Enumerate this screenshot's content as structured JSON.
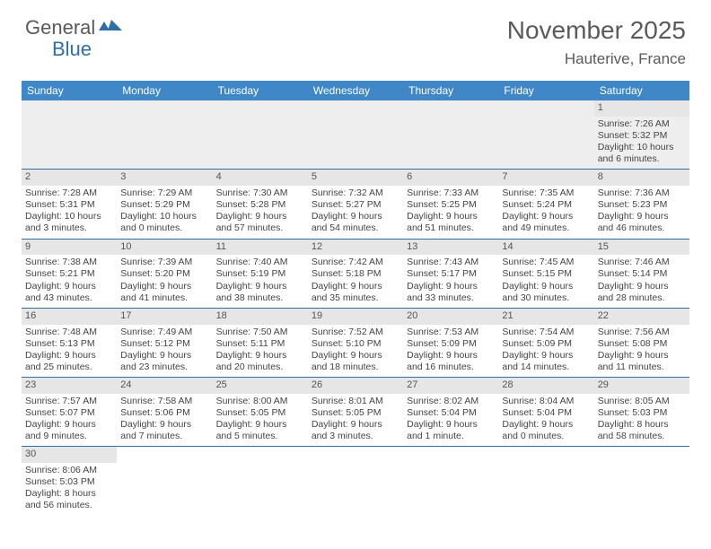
{
  "logo": {
    "text1": "General",
    "text2": "Blue",
    "color_gray": "#5a5a5a",
    "color_blue": "#2f6fa8"
  },
  "title": "November 2025",
  "location": "Hauterive, France",
  "colors": {
    "header_bg": "#3f87c6",
    "header_fg": "#ffffff",
    "cell_border": "#2f6fa8",
    "daynum_bg": "#e6e6e6",
    "empty_bg": "#eeeeee",
    "text": "#444444"
  },
  "days": [
    "Sunday",
    "Monday",
    "Tuesday",
    "Wednesday",
    "Thursday",
    "Friday",
    "Saturday"
  ],
  "weeks": [
    [
      null,
      null,
      null,
      null,
      null,
      null,
      {
        "n": "1",
        "sr": "Sunrise: 7:26 AM",
        "ss": "Sunset: 5:32 PM",
        "dl": "Daylight: 10 hours and 6 minutes."
      }
    ],
    [
      {
        "n": "2",
        "sr": "Sunrise: 7:28 AM",
        "ss": "Sunset: 5:31 PM",
        "dl": "Daylight: 10 hours and 3 minutes."
      },
      {
        "n": "3",
        "sr": "Sunrise: 7:29 AM",
        "ss": "Sunset: 5:29 PM",
        "dl": "Daylight: 10 hours and 0 minutes."
      },
      {
        "n": "4",
        "sr": "Sunrise: 7:30 AM",
        "ss": "Sunset: 5:28 PM",
        "dl": "Daylight: 9 hours and 57 minutes."
      },
      {
        "n": "5",
        "sr": "Sunrise: 7:32 AM",
        "ss": "Sunset: 5:27 PM",
        "dl": "Daylight: 9 hours and 54 minutes."
      },
      {
        "n": "6",
        "sr": "Sunrise: 7:33 AM",
        "ss": "Sunset: 5:25 PM",
        "dl": "Daylight: 9 hours and 51 minutes."
      },
      {
        "n": "7",
        "sr": "Sunrise: 7:35 AM",
        "ss": "Sunset: 5:24 PM",
        "dl": "Daylight: 9 hours and 49 minutes."
      },
      {
        "n": "8",
        "sr": "Sunrise: 7:36 AM",
        "ss": "Sunset: 5:23 PM",
        "dl": "Daylight: 9 hours and 46 minutes."
      }
    ],
    [
      {
        "n": "9",
        "sr": "Sunrise: 7:38 AM",
        "ss": "Sunset: 5:21 PM",
        "dl": "Daylight: 9 hours and 43 minutes."
      },
      {
        "n": "10",
        "sr": "Sunrise: 7:39 AM",
        "ss": "Sunset: 5:20 PM",
        "dl": "Daylight: 9 hours and 41 minutes."
      },
      {
        "n": "11",
        "sr": "Sunrise: 7:40 AM",
        "ss": "Sunset: 5:19 PM",
        "dl": "Daylight: 9 hours and 38 minutes."
      },
      {
        "n": "12",
        "sr": "Sunrise: 7:42 AM",
        "ss": "Sunset: 5:18 PM",
        "dl": "Daylight: 9 hours and 35 minutes."
      },
      {
        "n": "13",
        "sr": "Sunrise: 7:43 AM",
        "ss": "Sunset: 5:17 PM",
        "dl": "Daylight: 9 hours and 33 minutes."
      },
      {
        "n": "14",
        "sr": "Sunrise: 7:45 AM",
        "ss": "Sunset: 5:15 PM",
        "dl": "Daylight: 9 hours and 30 minutes."
      },
      {
        "n": "15",
        "sr": "Sunrise: 7:46 AM",
        "ss": "Sunset: 5:14 PM",
        "dl": "Daylight: 9 hours and 28 minutes."
      }
    ],
    [
      {
        "n": "16",
        "sr": "Sunrise: 7:48 AM",
        "ss": "Sunset: 5:13 PM",
        "dl": "Daylight: 9 hours and 25 minutes."
      },
      {
        "n": "17",
        "sr": "Sunrise: 7:49 AM",
        "ss": "Sunset: 5:12 PM",
        "dl": "Daylight: 9 hours and 23 minutes."
      },
      {
        "n": "18",
        "sr": "Sunrise: 7:50 AM",
        "ss": "Sunset: 5:11 PM",
        "dl": "Daylight: 9 hours and 20 minutes."
      },
      {
        "n": "19",
        "sr": "Sunrise: 7:52 AM",
        "ss": "Sunset: 5:10 PM",
        "dl": "Daylight: 9 hours and 18 minutes."
      },
      {
        "n": "20",
        "sr": "Sunrise: 7:53 AM",
        "ss": "Sunset: 5:09 PM",
        "dl": "Daylight: 9 hours and 16 minutes."
      },
      {
        "n": "21",
        "sr": "Sunrise: 7:54 AM",
        "ss": "Sunset: 5:09 PM",
        "dl": "Daylight: 9 hours and 14 minutes."
      },
      {
        "n": "22",
        "sr": "Sunrise: 7:56 AM",
        "ss": "Sunset: 5:08 PM",
        "dl": "Daylight: 9 hours and 11 minutes."
      }
    ],
    [
      {
        "n": "23",
        "sr": "Sunrise: 7:57 AM",
        "ss": "Sunset: 5:07 PM",
        "dl": "Daylight: 9 hours and 9 minutes."
      },
      {
        "n": "24",
        "sr": "Sunrise: 7:58 AM",
        "ss": "Sunset: 5:06 PM",
        "dl": "Daylight: 9 hours and 7 minutes."
      },
      {
        "n": "25",
        "sr": "Sunrise: 8:00 AM",
        "ss": "Sunset: 5:05 PM",
        "dl": "Daylight: 9 hours and 5 minutes."
      },
      {
        "n": "26",
        "sr": "Sunrise: 8:01 AM",
        "ss": "Sunset: 5:05 PM",
        "dl": "Daylight: 9 hours and 3 minutes."
      },
      {
        "n": "27",
        "sr": "Sunrise: 8:02 AM",
        "ss": "Sunset: 5:04 PM",
        "dl": "Daylight: 9 hours and 1 minute."
      },
      {
        "n": "28",
        "sr": "Sunrise: 8:04 AM",
        "ss": "Sunset: 5:04 PM",
        "dl": "Daylight: 9 hours and 0 minutes."
      },
      {
        "n": "29",
        "sr": "Sunrise: 8:05 AM",
        "ss": "Sunset: 5:03 PM",
        "dl": "Daylight: 8 hours and 58 minutes."
      }
    ],
    [
      {
        "n": "30",
        "sr": "Sunrise: 8:06 AM",
        "ss": "Sunset: 5:03 PM",
        "dl": "Daylight: 8 hours and 56 minutes."
      },
      null,
      null,
      null,
      null,
      null,
      null
    ]
  ]
}
